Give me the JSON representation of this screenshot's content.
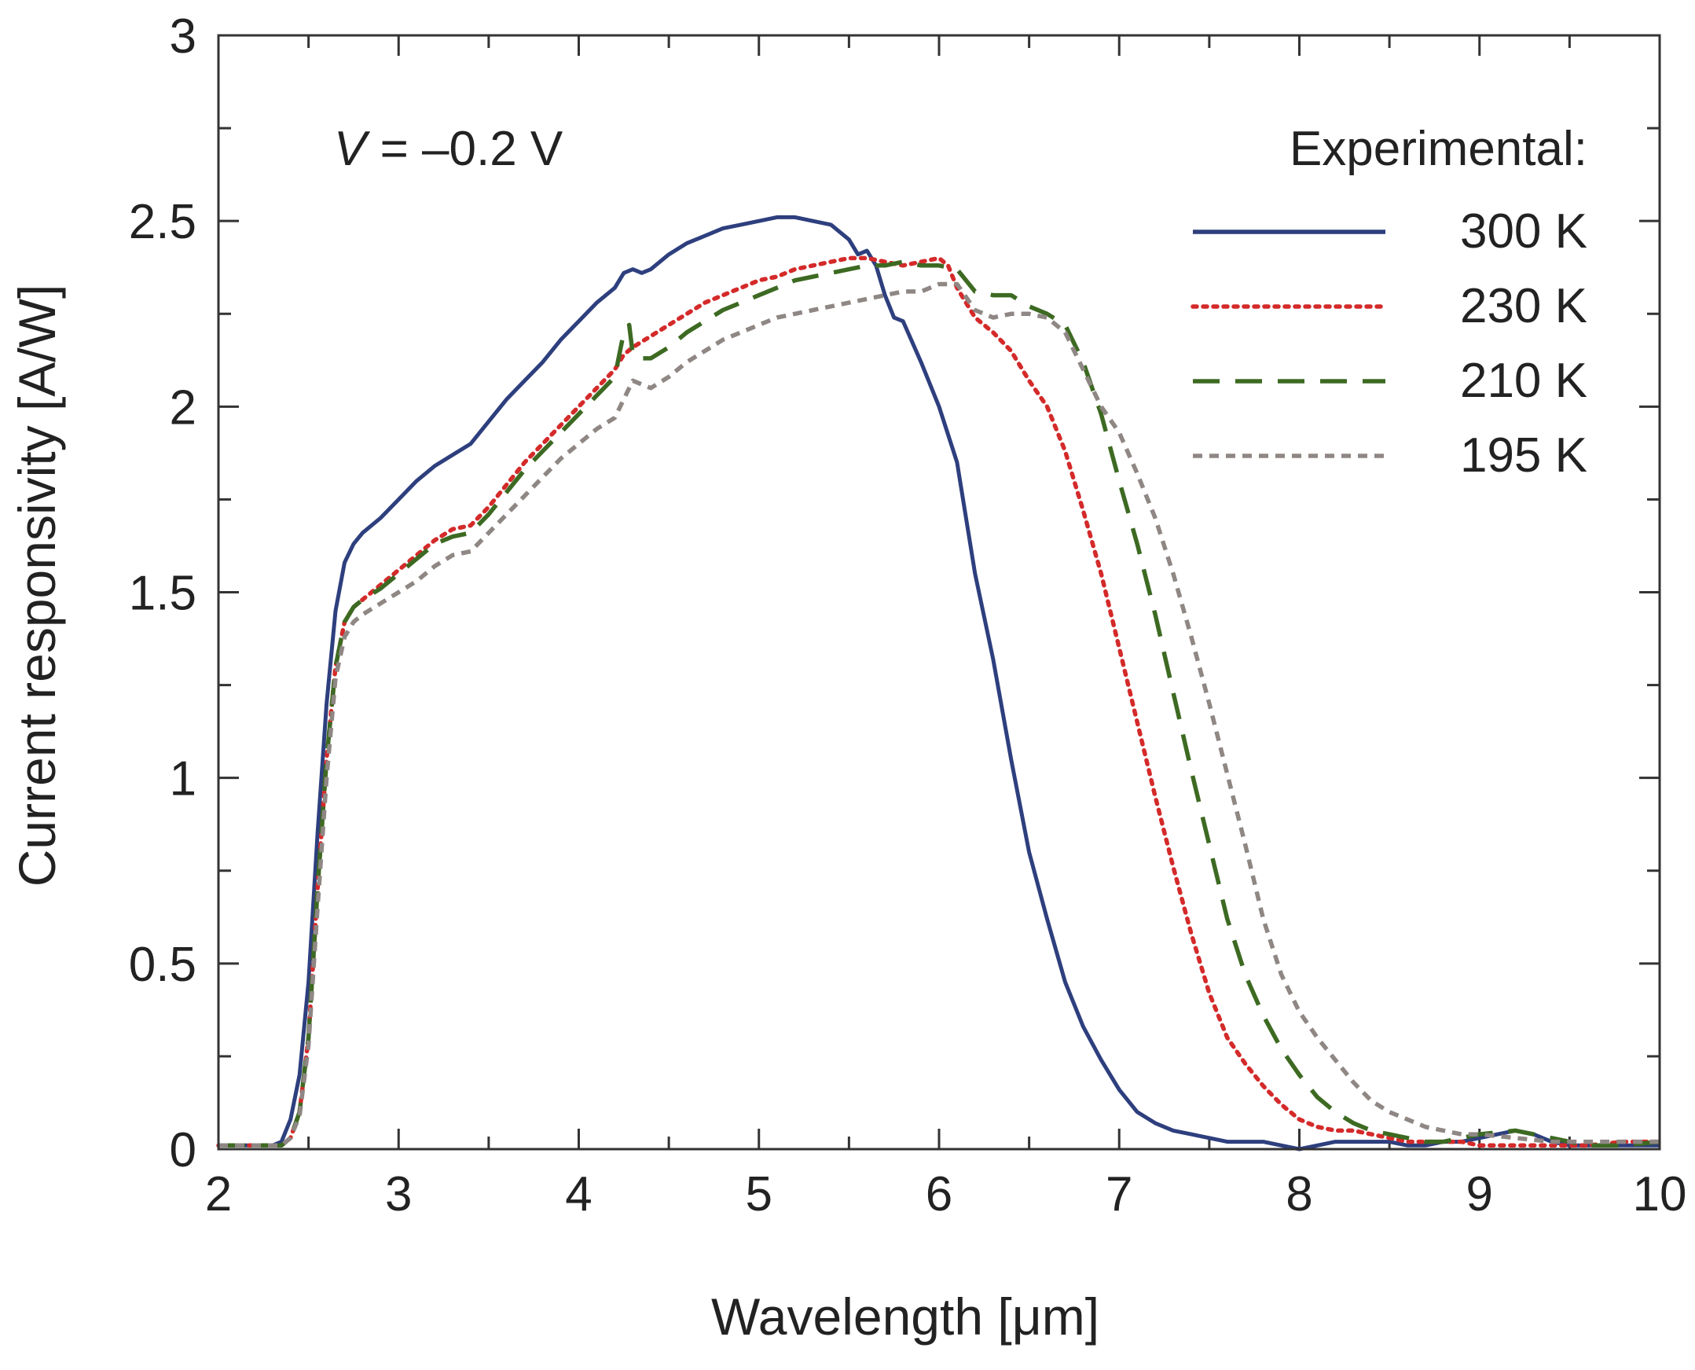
{
  "chart_data": {
    "type": "line",
    "title": "",
    "xlabel": "Wavelength [μm]",
    "ylabel": "Current responsivity [A/W]",
    "xlim": [
      2,
      10
    ],
    "ylim": [
      0,
      3
    ],
    "xticks": [
      2,
      3,
      4,
      5,
      6,
      7,
      8,
      9,
      10
    ],
    "xtick_labels": [
      "2",
      "3",
      "4",
      "5",
      "6",
      "7",
      "8",
      "9",
      "10"
    ],
    "yticks": [
      0,
      0.5,
      1,
      1.5,
      2,
      2.5,
      3
    ],
    "ytick_labels": [
      "0",
      "0.5",
      "1",
      "1.5",
      "2",
      "2.5",
      "3"
    ],
    "annotation": {
      "var": "V",
      "rest": " = –0.2 V"
    },
    "legend_title": "Experimental:",
    "legend_position": "top-right",
    "grid": false,
    "series": [
      {
        "name": "300 K",
        "color": "#2e3f7e",
        "style": "solid",
        "x": [
          2.0,
          2.1,
          2.2,
          2.3,
          2.35,
          2.4,
          2.45,
          2.5,
          2.55,
          2.6,
          2.65,
          2.7,
          2.75,
          2.8,
          2.9,
          3.0,
          3.1,
          3.2,
          3.3,
          3.4,
          3.5,
          3.6,
          3.7,
          3.8,
          3.9,
          4.0,
          4.1,
          4.2,
          4.25,
          4.3,
          4.35,
          4.4,
          4.5,
          4.6,
          4.7,
          4.8,
          4.9,
          5.0,
          5.1,
          5.2,
          5.3,
          5.4,
          5.5,
          5.55,
          5.6,
          5.65,
          5.7,
          5.75,
          5.8,
          5.9,
          6.0,
          6.1,
          6.2,
          6.3,
          6.4,
          6.5,
          6.6,
          6.7,
          6.8,
          6.9,
          7.0,
          7.1,
          7.2,
          7.3,
          7.4,
          7.5,
          7.6,
          7.7,
          7.8,
          7.9,
          8.0,
          8.1,
          8.2,
          8.3,
          8.4,
          8.5,
          8.6,
          8.7,
          8.8,
          8.9,
          9.0,
          9.1,
          9.2,
          9.3,
          9.4,
          9.5,
          9.6,
          9.7,
          9.8,
          9.9,
          10.0
        ],
        "y": [
          0.01,
          0.01,
          0.01,
          0.01,
          0.02,
          0.08,
          0.2,
          0.45,
          0.85,
          1.2,
          1.45,
          1.58,
          1.63,
          1.66,
          1.7,
          1.75,
          1.8,
          1.84,
          1.87,
          1.9,
          1.96,
          2.02,
          2.07,
          2.12,
          2.18,
          2.23,
          2.28,
          2.32,
          2.36,
          2.37,
          2.36,
          2.37,
          2.41,
          2.44,
          2.46,
          2.48,
          2.49,
          2.5,
          2.51,
          2.51,
          2.5,
          2.49,
          2.45,
          2.41,
          2.42,
          2.38,
          2.3,
          2.24,
          2.23,
          2.12,
          2.0,
          1.85,
          1.55,
          1.32,
          1.05,
          0.8,
          0.62,
          0.45,
          0.33,
          0.24,
          0.16,
          0.1,
          0.07,
          0.05,
          0.04,
          0.03,
          0.02,
          0.02,
          0.02,
          0.01,
          0.0,
          0.01,
          0.02,
          0.02,
          0.02,
          0.02,
          0.01,
          0.01,
          0.02,
          0.02,
          0.03,
          0.04,
          0.05,
          0.04,
          0.02,
          0.01,
          0.01,
          0.01,
          0.01,
          0.01,
          0.01
        ]
      },
      {
        "name": "230 K",
        "color": "#d42a2a",
        "style": "dotted",
        "x": [
          2.0,
          2.1,
          2.2,
          2.3,
          2.35,
          2.4,
          2.45,
          2.5,
          2.55,
          2.6,
          2.65,
          2.7,
          2.75,
          2.8,
          2.9,
          3.0,
          3.1,
          3.2,
          3.3,
          3.4,
          3.5,
          3.6,
          3.7,
          3.8,
          3.9,
          4.0,
          4.1,
          4.2,
          4.25,
          4.3,
          4.4,
          4.5,
          4.6,
          4.7,
          4.8,
          4.9,
          5.0,
          5.1,
          5.2,
          5.3,
          5.4,
          5.5,
          5.6,
          5.7,
          5.8,
          5.9,
          6.0,
          6.05,
          6.1,
          6.2,
          6.3,
          6.4,
          6.5,
          6.6,
          6.7,
          6.8,
          6.9,
          7.0,
          7.1,
          7.2,
          7.3,
          7.4,
          7.5,
          7.6,
          7.7,
          7.8,
          7.9,
          8.0,
          8.1,
          8.2,
          8.3,
          8.4,
          8.5,
          8.6,
          8.7,
          8.8,
          8.9,
          9.0,
          9.2,
          9.4,
          9.6,
          9.8,
          10.0
        ],
        "y": [
          0.01,
          0.01,
          0.01,
          0.01,
          0.01,
          0.03,
          0.1,
          0.3,
          0.7,
          1.05,
          1.3,
          1.42,
          1.46,
          1.48,
          1.52,
          1.56,
          1.6,
          1.64,
          1.67,
          1.68,
          1.73,
          1.79,
          1.85,
          1.9,
          1.95,
          2.0,
          2.05,
          2.1,
          2.14,
          2.16,
          2.19,
          2.22,
          2.25,
          2.28,
          2.3,
          2.32,
          2.34,
          2.35,
          2.37,
          2.38,
          2.39,
          2.4,
          2.4,
          2.39,
          2.38,
          2.39,
          2.4,
          2.38,
          2.32,
          2.24,
          2.2,
          2.15,
          2.07,
          2.0,
          1.88,
          1.72,
          1.55,
          1.35,
          1.15,
          0.95,
          0.76,
          0.58,
          0.42,
          0.3,
          0.23,
          0.17,
          0.12,
          0.08,
          0.06,
          0.05,
          0.05,
          0.04,
          0.03,
          0.02,
          0.02,
          0.02,
          0.02,
          0.01,
          0.01,
          0.01,
          0.01,
          0.02,
          0.02
        ]
      },
      {
        "name": "210 K",
        "color": "#3d6a22",
        "style": "dashed",
        "x": [
          2.0,
          2.1,
          2.2,
          2.3,
          2.35,
          2.4,
          2.45,
          2.5,
          2.55,
          2.6,
          2.65,
          2.7,
          2.75,
          2.8,
          2.9,
          3.0,
          3.1,
          3.2,
          3.3,
          3.4,
          3.5,
          3.6,
          3.7,
          3.8,
          3.9,
          4.0,
          4.1,
          4.2,
          4.25,
          4.28,
          4.3,
          4.35,
          4.4,
          4.5,
          4.6,
          4.7,
          4.8,
          4.9,
          5.0,
          5.1,
          5.2,
          5.3,
          5.4,
          5.5,
          5.6,
          5.7,
          5.8,
          5.9,
          6.0,
          6.1,
          6.15,
          6.2,
          6.3,
          6.4,
          6.5,
          6.6,
          6.7,
          6.8,
          6.9,
          7.0,
          7.1,
          7.2,
          7.3,
          7.4,
          7.5,
          7.6,
          7.7,
          7.8,
          7.9,
          8.0,
          8.1,
          8.2,
          8.3,
          8.4,
          8.5,
          8.6,
          8.7,
          8.8,
          8.9,
          9.0,
          9.2,
          9.4,
          9.6,
          9.8,
          10.0
        ],
        "y": [
          0.01,
          0.01,
          0.01,
          0.01,
          0.01,
          0.03,
          0.1,
          0.3,
          0.7,
          1.05,
          1.3,
          1.42,
          1.46,
          1.48,
          1.51,
          1.55,
          1.59,
          1.63,
          1.65,
          1.66,
          1.71,
          1.77,
          1.83,
          1.88,
          1.93,
          1.98,
          2.03,
          2.08,
          2.2,
          2.22,
          2.14,
          2.13,
          2.13,
          2.16,
          2.2,
          2.23,
          2.26,
          2.28,
          2.3,
          2.32,
          2.34,
          2.35,
          2.36,
          2.37,
          2.38,
          2.38,
          2.39,
          2.38,
          2.38,
          2.37,
          2.34,
          2.31,
          2.3,
          2.3,
          2.27,
          2.25,
          2.22,
          2.12,
          1.98,
          1.8,
          1.63,
          1.44,
          1.23,
          1.02,
          0.82,
          0.62,
          0.47,
          0.36,
          0.27,
          0.2,
          0.14,
          0.1,
          0.07,
          0.05,
          0.04,
          0.03,
          0.02,
          0.02,
          0.03,
          0.04,
          0.05,
          0.03,
          0.01,
          0.01,
          0.02
        ]
      },
      {
        "name": "195 K",
        "color": "#8f8784",
        "style": "short-dashed",
        "x": [
          2.0,
          2.1,
          2.2,
          2.3,
          2.35,
          2.4,
          2.45,
          2.5,
          2.55,
          2.6,
          2.65,
          2.7,
          2.75,
          2.8,
          2.9,
          3.0,
          3.1,
          3.2,
          3.3,
          3.4,
          3.5,
          3.6,
          3.7,
          3.8,
          3.9,
          4.0,
          4.1,
          4.2,
          4.25,
          4.3,
          4.35,
          4.4,
          4.5,
          4.6,
          4.7,
          4.8,
          4.9,
          5.0,
          5.1,
          5.2,
          5.3,
          5.4,
          5.5,
          5.6,
          5.7,
          5.8,
          5.9,
          6.0,
          6.1,
          6.2,
          6.3,
          6.4,
          6.5,
          6.6,
          6.7,
          6.8,
          6.9,
          7.0,
          7.1,
          7.2,
          7.3,
          7.4,
          7.5,
          7.6,
          7.7,
          7.8,
          7.9,
          8.0,
          8.1,
          8.2,
          8.3,
          8.4,
          8.5,
          8.6,
          8.7,
          8.8,
          8.9,
          9.0,
          9.2,
          9.4,
          9.6,
          9.8,
          10.0
        ],
        "y": [
          0.01,
          0.01,
          0.01,
          0.01,
          0.01,
          0.03,
          0.09,
          0.28,
          0.65,
          1.0,
          1.27,
          1.38,
          1.42,
          1.44,
          1.47,
          1.5,
          1.53,
          1.57,
          1.6,
          1.61,
          1.66,
          1.71,
          1.76,
          1.81,
          1.86,
          1.9,
          1.94,
          1.97,
          2.02,
          2.07,
          2.06,
          2.05,
          2.08,
          2.12,
          2.15,
          2.18,
          2.2,
          2.22,
          2.24,
          2.25,
          2.26,
          2.27,
          2.28,
          2.29,
          2.3,
          2.31,
          2.31,
          2.33,
          2.33,
          2.26,
          2.24,
          2.25,
          2.25,
          2.24,
          2.2,
          2.1,
          2.0,
          1.93,
          1.82,
          1.7,
          1.55,
          1.38,
          1.2,
          1.01,
          0.82,
          0.62,
          0.47,
          0.37,
          0.3,
          0.24,
          0.18,
          0.13,
          0.1,
          0.08,
          0.06,
          0.05,
          0.04,
          0.04,
          0.03,
          0.02,
          0.02,
          0.02,
          0.02
        ]
      }
    ]
  }
}
